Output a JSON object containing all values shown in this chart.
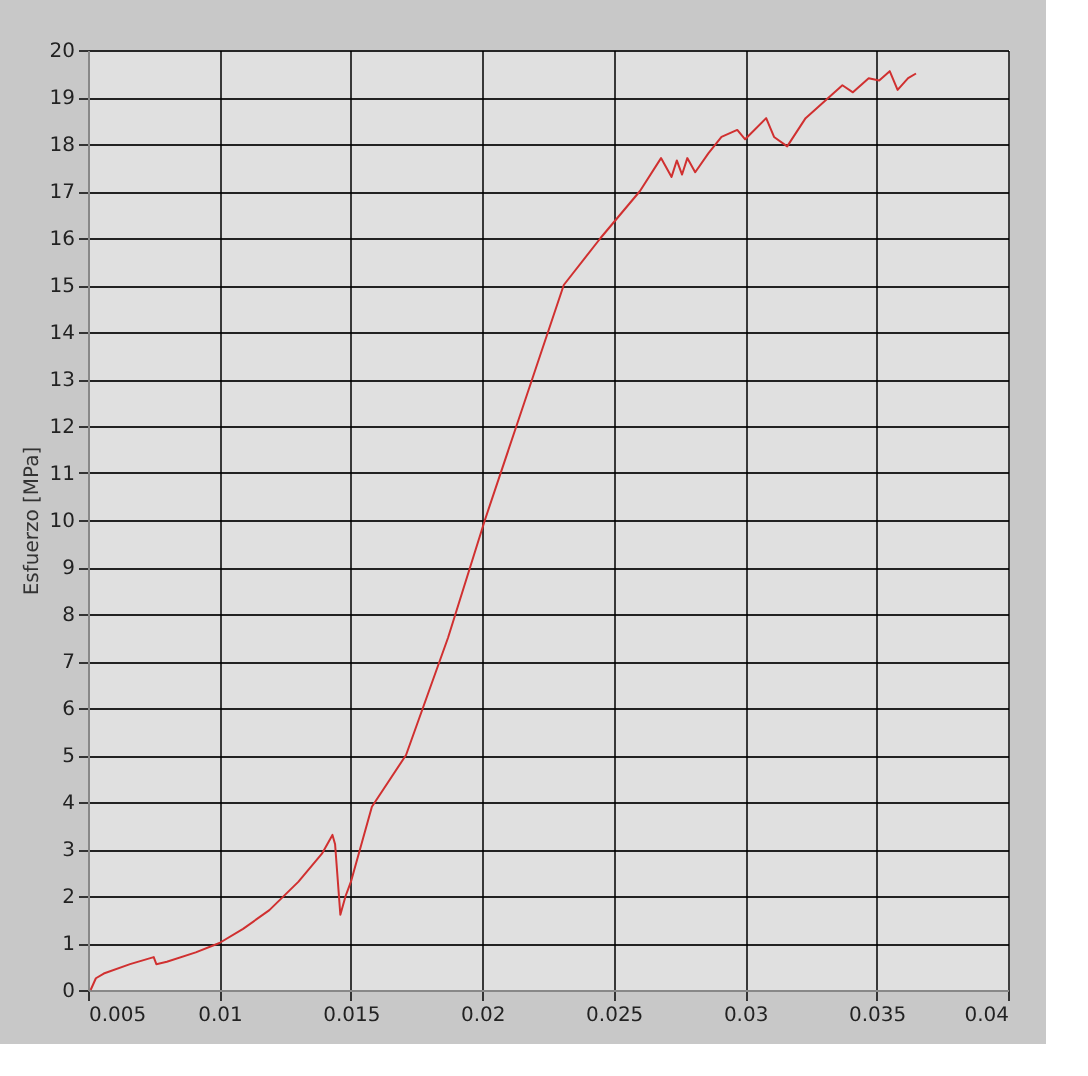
{
  "chart_data": {
    "type": "line",
    "ylabel": "Esfuerzo  [MPa]",
    "x": [
      0.0051,
      0.0053,
      0.0056,
      0.0066,
      0.0075,
      0.0076,
      0.008,
      0.0091,
      0.01,
      0.0109,
      0.0119,
      0.013,
      0.0139,
      0.0143,
      0.0144,
      0.0146,
      0.0148,
      0.015,
      0.0158,
      0.0171,
      0.0187,
      0.0201,
      0.0216,
      0.0231,
      0.0245,
      0.026,
      0.0268,
      0.0272,
      0.0274,
      0.0276,
      0.0278,
      0.0281,
      0.0286,
      0.0291,
      0.0297,
      0.03,
      0.0308,
      0.0311,
      0.0316,
      0.0323,
      0.033,
      0.0337,
      0.0341,
      0.0347,
      0.0351,
      0.0355,
      0.0358,
      0.0362,
      0.0365
    ],
    "series": [
      {
        "color": "#d03030",
        "values": [
          0,
          0.25,
          0.35,
          0.55,
          0.7,
          0.55,
          0.6,
          0.8,
          1.0,
          1.3,
          1.7,
          2.3,
          2.9,
          3.3,
          3.1,
          1.6,
          2.0,
          2.3,
          3.9,
          5,
          7.5,
          10,
          12.5,
          15,
          16,
          17,
          17.7,
          17.3,
          17.65,
          17.35,
          17.7,
          17.4,
          17.8,
          18.15,
          18.3,
          18.1,
          18.55,
          18.15,
          17.95,
          18.55,
          18.9,
          19.25,
          19.1,
          19.4,
          19.35,
          19.55,
          19.15,
          19.4,
          19.5
        ]
      }
    ],
    "xlim": [
      0.005,
      0.04
    ],
    "xticks": [
      0.005,
      0.01,
      0.015,
      0.02,
      0.025,
      0.03,
      0.035,
      0.04
    ],
    "ylim": [
      0,
      20
    ],
    "yticks": [
      0,
      1,
      2,
      3,
      4,
      5,
      6,
      7,
      8,
      9,
      10,
      11,
      12,
      13,
      14,
      15,
      16,
      17,
      18,
      19,
      20
    ],
    "grid": true,
    "line_style": "solid",
    "marker": "none"
  }
}
